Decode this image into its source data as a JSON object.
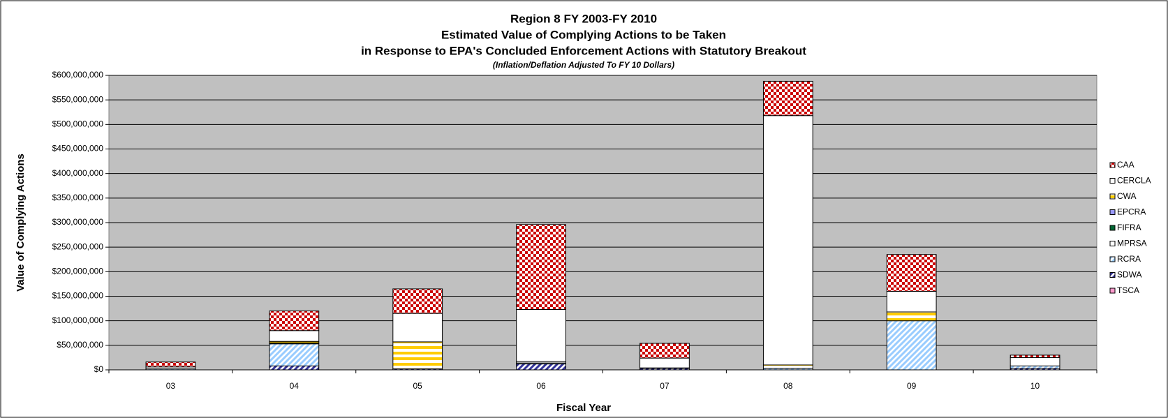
{
  "chart_data": {
    "type": "stacked_bar",
    "title": [
      "Region 8 FY 2003-FY 2010",
      "Estimated Value of Complying Actions to be Taken",
      "in Response to EPA's Concluded Enforcement Actions with Statutory Breakout"
    ],
    "subtitle": "(Inflation/Deflation Adjusted To FY 10 Dollars)",
    "x_label": "Fiscal Year",
    "y_label": "Value of Complying Actions",
    "categories": [
      "03",
      "04",
      "05",
      "06",
      "07",
      "08",
      "09",
      "10"
    ],
    "series": [
      {
        "name": "CAA",
        "color": "#cc0000",
        "pattern": "checker",
        "values": [
          10000000,
          40000000,
          50000000,
          173000000,
          30000000,
          70000000,
          75000000,
          5000000
        ]
      },
      {
        "name": "CERCLA",
        "color": "#ffffff",
        "pattern": "none",
        "values": [
          4000000,
          22000000,
          58000000,
          106000000,
          20000000,
          508000000,
          42000000,
          17000000
        ]
      },
      {
        "name": "CWA",
        "color": "#ffcc00",
        "pattern": "hstripe",
        "values": [
          0,
          3000000,
          55000000,
          3000000,
          1000000,
          7000000,
          18000000,
          0
        ]
      },
      {
        "name": "EPCRA",
        "color": "#9999ff",
        "pattern": "none",
        "values": [
          0,
          0,
          0,
          0,
          0,
          0,
          0,
          0
        ]
      },
      {
        "name": "FIFRA",
        "color": "#006633",
        "pattern": "none",
        "values": [
          0,
          2000000,
          0,
          0,
          0,
          0,
          0,
          0
        ]
      },
      {
        "name": "MPRSA",
        "color": "#ffffff",
        "pattern": "none",
        "values": [
          0,
          0,
          0,
          0,
          0,
          0,
          0,
          0
        ]
      },
      {
        "name": "RCRA",
        "color": "#99ccff",
        "pattern": "diag",
        "values": [
          2000000,
          45000000,
          0,
          2000000,
          0,
          3000000,
          100000000,
          5000000
        ]
      },
      {
        "name": "SDWA",
        "color": "#333399",
        "pattern": "diag",
        "values": [
          0,
          8000000,
          2000000,
          12000000,
          3000000,
          0,
          0,
          3000000
        ]
      },
      {
        "name": "TSCA",
        "color": "#ff99cc",
        "pattern": "none",
        "values": [
          0,
          0,
          0,
          0,
          0,
          0,
          0,
          0
        ]
      }
    ],
    "ylim": [
      0,
      600000000
    ],
    "yticks": [
      {
        "value": 0,
        "label": "$0"
      },
      {
        "value": 50000000,
        "label": "$50,000,000"
      },
      {
        "value": 100000000,
        "label": "$100,000,000"
      },
      {
        "value": 150000000,
        "label": "$150,000,000"
      },
      {
        "value": 200000000,
        "label": "$200,000,000"
      },
      {
        "value": 250000000,
        "label": "$250,000,000"
      },
      {
        "value": 300000000,
        "label": "$300,000,000"
      },
      {
        "value": 350000000,
        "label": "$350,000,000"
      },
      {
        "value": 400000000,
        "label": "$400,000,000"
      },
      {
        "value": 450000000,
        "label": "$450,000,000"
      },
      {
        "value": 500000000,
        "label": "$500,000,000"
      },
      {
        "value": 550000000,
        "label": "$550,000,000"
      },
      {
        "value": 600000000,
        "label": "$600,000,000"
      }
    ],
    "grid": true,
    "legend": "right"
  }
}
